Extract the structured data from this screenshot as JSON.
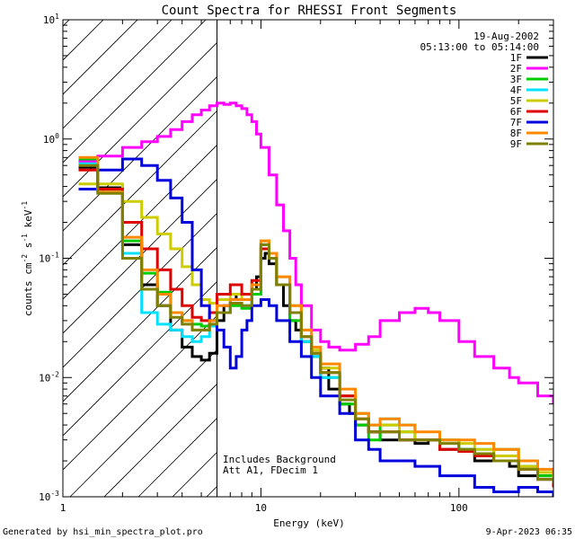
{
  "chart_data": {
    "type": "line",
    "title": "Count Spectra for RHESSI Front Segments",
    "xlabel": "Energy (keV)",
    "ylabel_main": "counts cm",
    "ylabel_exp1": "-2",
    "ylabel_mid": " s",
    "ylabel_exp2": "-1",
    "ylabel_end": " keV",
    "ylabel_exp3": "-1",
    "xscale": "log",
    "yscale": "log",
    "xlim": [
      1,
      300
    ],
    "ylim": [
      0.001,
      10
    ],
    "x_ticks": [
      {
        "value": 1,
        "label": "1"
      },
      {
        "value": 10,
        "label": "10"
      },
      {
        "value": 100,
        "label": "100"
      }
    ],
    "y_ticks": [
      {
        "value": 0.001,
        "base": "10",
        "exp": "-3"
      },
      {
        "value": 0.01,
        "base": "10",
        "exp": "-2"
      },
      {
        "value": 0.1,
        "base": "10",
        "exp": "-1"
      },
      {
        "value": 1,
        "base": "10",
        "exp": "0"
      },
      {
        "value": 10,
        "base": "10",
        "exp": "1"
      }
    ],
    "attenuator_energy": 6,
    "annotations": {
      "date": "19-Aug-2002",
      "time_range": "05:13:00 to 05:14:00",
      "background_note": "Includes Background",
      "att_note": "Att A1, FDecim 1"
    },
    "footer": {
      "left": "Generated by hsi_min_spectra_plot.pro",
      "right": "9-Apr-2023 06:35"
    },
    "series": [
      {
        "name": "1F",
        "color": "#000000",
        "x": [
          1.2,
          1.5,
          2,
          2.5,
          3,
          3.5,
          4,
          4.5,
          5,
          5.5,
          6,
          6.5,
          7,
          7.5,
          8,
          8.5,
          9,
          9.5,
          10,
          10.5,
          11,
          12,
          13,
          14,
          15,
          16,
          18,
          20,
          22,
          25,
          28,
          30,
          35,
          40,
          50,
          60,
          70,
          80,
          100,
          120,
          150,
          180,
          200,
          250,
          300
        ],
        "y": [
          0.58,
          0.39,
          0.13,
          0.06,
          0.04,
          0.025,
          0.018,
          0.015,
          0.014,
          0.016,
          0.03,
          0.04,
          0.045,
          0.05,
          0.05,
          0.05,
          0.055,
          0.07,
          0.1,
          0.11,
          0.09,
          0.06,
          0.04,
          0.03,
          0.025,
          0.02,
          0.015,
          0.012,
          0.008,
          0.006,
          0.005,
          0.004,
          0.0035,
          0.003,
          0.003,
          0.0028,
          0.003,
          0.0025,
          0.0025,
          0.002,
          0.002,
          0.0018,
          0.0015,
          0.0015,
          0.0012
        ]
      },
      {
        "name": "2F",
        "color": "#ff00ff",
        "x": [
          1.2,
          1.5,
          2,
          2.5,
          3,
          3.5,
          4,
          4.5,
          5,
          5.5,
          6,
          6.5,
          7,
          7.5,
          8,
          8.5,
          9,
          9.5,
          10,
          11,
          12,
          13,
          14,
          15,
          16,
          18,
          20,
          22,
          25,
          28,
          30,
          35,
          40,
          50,
          60,
          70,
          80,
          100,
          120,
          150,
          180,
          200,
          250,
          300
        ],
        "y": [
          0.65,
          0.72,
          0.85,
          0.95,
          1.05,
          1.2,
          1.4,
          1.6,
          1.75,
          1.9,
          2.0,
          1.95,
          2.0,
          1.9,
          1.8,
          1.6,
          1.4,
          1.1,
          0.85,
          0.5,
          0.28,
          0.17,
          0.1,
          0.06,
          0.04,
          0.025,
          0.02,
          0.018,
          0.017,
          0.017,
          0.019,
          0.022,
          0.03,
          0.035,
          0.038,
          0.035,
          0.03,
          0.02,
          0.015,
          0.012,
          0.01,
          0.009,
          0.007,
          0.006
        ]
      },
      {
        "name": "3F",
        "color": "#00cc00",
        "x": [
          1.2,
          1.5,
          2,
          2.5,
          3,
          3.5,
          4,
          4.5,
          5,
          5.5,
          6,
          7,
          8,
          9,
          10,
          11,
          12,
          14,
          16,
          18,
          20,
          25,
          30,
          35,
          40,
          50,
          60,
          80,
          100,
          120,
          150,
          200,
          250,
          300
        ],
        "y": [
          0.68,
          0.38,
          0.14,
          0.075,
          0.052,
          0.035,
          0.03,
          0.028,
          0.027,
          0.03,
          0.035,
          0.04,
          0.038,
          0.05,
          0.12,
          0.1,
          0.06,
          0.03,
          0.02,
          0.015,
          0.01,
          0.006,
          0.004,
          0.003,
          0.004,
          0.0035,
          0.003,
          0.003,
          0.0025,
          0.0022,
          0.0025,
          0.0018,
          0.0015,
          0.0013
        ]
      },
      {
        "name": "4F",
        "color": "#00e0ff",
        "x": [
          1.2,
          1.5,
          2,
          2.5,
          3,
          3.5,
          4,
          4.5,
          5,
          5.5,
          6,
          7,
          8,
          9,
          10,
          11,
          12,
          14,
          16,
          18,
          20,
          25,
          30,
          35,
          40,
          50,
          60,
          80,
          100,
          120,
          150,
          200,
          250,
          300
        ],
        "y": [
          0.62,
          0.36,
          0.11,
          0.035,
          0.028,
          0.025,
          0.022,
          0.02,
          0.022,
          0.027,
          0.035,
          0.042,
          0.04,
          0.055,
          0.13,
          0.1,
          0.06,
          0.035,
          0.02,
          0.015,
          0.01,
          0.007,
          0.005,
          0.004,
          0.0045,
          0.004,
          0.003,
          0.003,
          0.0025,
          0.0025,
          0.002,
          0.0018,
          0.0014,
          0.0012
        ]
      },
      {
        "name": "5F",
        "color": "#cccc00",
        "x": [
          1.2,
          1.5,
          2,
          2.5,
          3,
          3.5,
          4,
          4.5,
          5,
          5.5,
          6,
          7,
          8,
          9,
          10,
          11,
          12,
          14,
          16,
          18,
          20,
          25,
          30,
          35,
          40,
          50,
          60,
          80,
          100,
          120,
          150,
          200,
          250,
          300
        ],
        "y": [
          0.42,
          0.42,
          0.3,
          0.22,
          0.16,
          0.12,
          0.085,
          0.06,
          0.045,
          0.042,
          0.045,
          0.05,
          0.045,
          0.06,
          0.14,
          0.11,
          0.07,
          0.04,
          0.025,
          0.017,
          0.012,
          0.007,
          0.005,
          0.004,
          0.004,
          0.0035,
          0.003,
          0.003,
          0.0028,
          0.0025,
          0.0022,
          0.0018,
          0.0016,
          0.0014
        ]
      },
      {
        "name": "6F",
        "color": "#dd0000",
        "x": [
          1.2,
          1.5,
          2,
          2.5,
          3,
          3.5,
          4,
          4.5,
          5,
          5.5,
          6,
          7,
          8,
          9,
          10,
          11,
          12,
          14,
          16,
          18,
          20,
          25,
          30,
          35,
          40,
          50,
          60,
          80,
          100,
          120,
          150,
          200,
          250,
          300
        ],
        "y": [
          0.55,
          0.38,
          0.2,
          0.12,
          0.08,
          0.055,
          0.04,
          0.032,
          0.03,
          0.035,
          0.05,
          0.06,
          0.05,
          0.065,
          0.12,
          0.1,
          0.06,
          0.035,
          0.022,
          0.016,
          0.011,
          0.007,
          0.0045,
          0.0035,
          0.0035,
          0.003,
          0.003,
          0.0025,
          0.0024,
          0.0022,
          0.002,
          0.0017,
          0.0014,
          0.0012
        ]
      },
      {
        "name": "7F",
        "color": "#0000dd",
        "x": [
          1.2,
          1.5,
          2,
          2.5,
          3,
          3.5,
          4,
          4.5,
          5,
          5.5,
          6,
          6.5,
          7,
          7.5,
          8,
          8.5,
          9,
          10,
          11,
          12,
          14,
          16,
          18,
          20,
          25,
          30,
          35,
          40,
          50,
          60,
          80,
          100,
          120,
          150,
          200,
          250,
          300
        ],
        "y": [
          0.38,
          0.55,
          0.68,
          0.6,
          0.45,
          0.32,
          0.2,
          0.08,
          0.04,
          0.03,
          0.025,
          0.018,
          0.012,
          0.015,
          0.025,
          0.03,
          0.04,
          0.045,
          0.04,
          0.03,
          0.02,
          0.015,
          0.01,
          0.007,
          0.005,
          0.003,
          0.0025,
          0.002,
          0.002,
          0.0018,
          0.0015,
          0.0015,
          0.0012,
          0.0011,
          0.0012,
          0.0011,
          0.001
        ]
      },
      {
        "name": "8F",
        "color": "#ff8800",
        "x": [
          1.2,
          1.5,
          2,
          2.5,
          3,
          3.5,
          4,
          4.5,
          5,
          5.5,
          6,
          7,
          8,
          9,
          10,
          11,
          12,
          14,
          16,
          18,
          20,
          25,
          30,
          35,
          40,
          50,
          60,
          80,
          100,
          120,
          150,
          200,
          250,
          300
        ],
        "y": [
          0.7,
          0.36,
          0.15,
          0.08,
          0.05,
          0.035,
          0.03,
          0.025,
          0.025,
          0.03,
          0.04,
          0.045,
          0.045,
          0.06,
          0.14,
          0.11,
          0.07,
          0.04,
          0.025,
          0.018,
          0.013,
          0.008,
          0.005,
          0.004,
          0.0045,
          0.004,
          0.0035,
          0.003,
          0.003,
          0.0028,
          0.0025,
          0.002,
          0.0017,
          0.0015
        ]
      },
      {
        "name": "9F",
        "color": "#808000",
        "x": [
          1.2,
          1.5,
          2,
          2.5,
          3,
          3.5,
          4,
          4.5,
          5,
          5.5,
          6,
          7,
          8,
          9,
          10,
          11,
          12,
          14,
          16,
          18,
          20,
          25,
          30,
          35,
          40,
          50,
          60,
          80,
          100,
          120,
          150,
          200,
          250,
          300
        ],
        "y": [
          0.6,
          0.35,
          0.1,
          0.055,
          0.04,
          0.032,
          0.028,
          0.025,
          0.025,
          0.028,
          0.035,
          0.042,
          0.04,
          0.055,
          0.13,
          0.1,
          0.06,
          0.035,
          0.022,
          0.016,
          0.011,
          0.0065,
          0.0045,
          0.0035,
          0.0035,
          0.003,
          0.003,
          0.0028,
          0.0025,
          0.0023,
          0.002,
          0.0017,
          0.0014,
          0.0013
        ]
      }
    ]
  }
}
